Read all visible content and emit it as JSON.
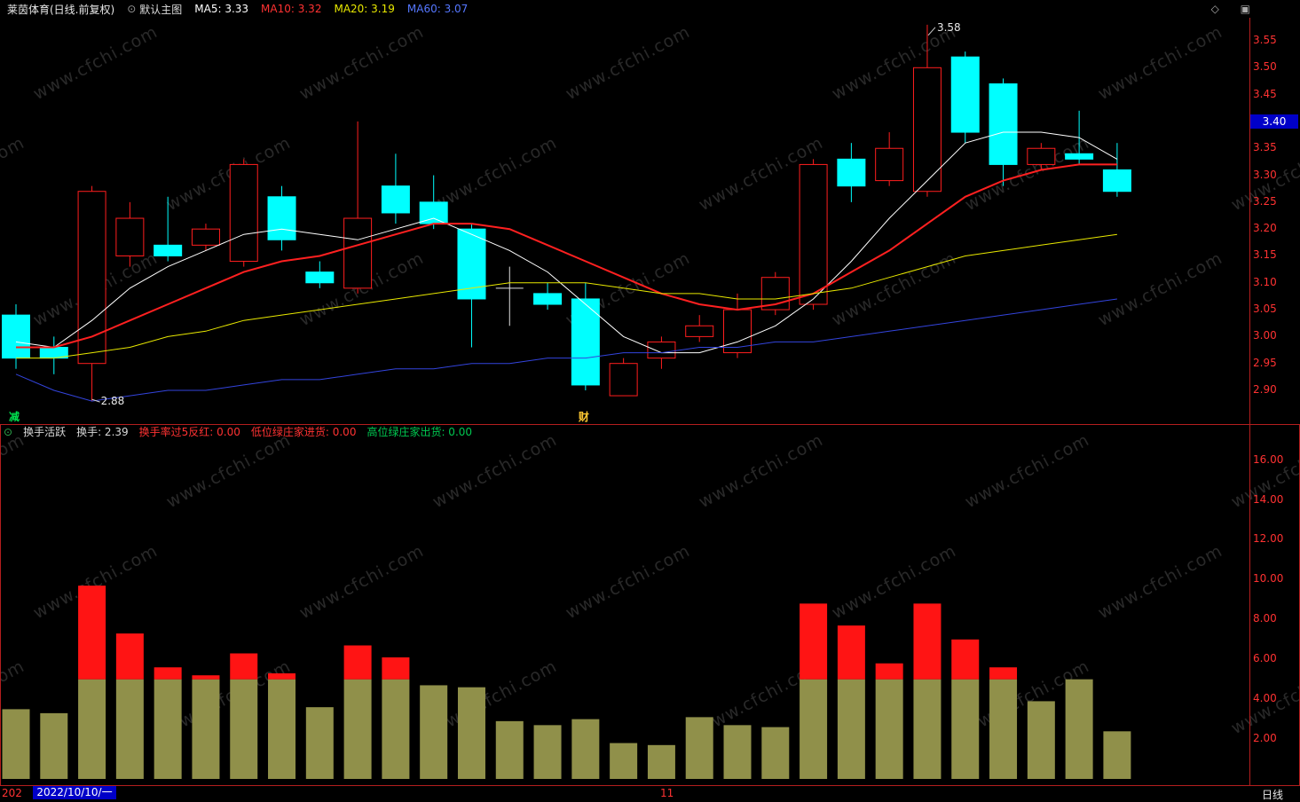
{
  "header": {
    "title": "莱茵体育(日线.前复权)",
    "overlay_label": "默认主图",
    "ma5": "MA5: 3.33",
    "ma10": "MA10: 3.32",
    "ma20": "MA20: 3.19",
    "ma60": "MA60: 3.07",
    "colors": {
      "ma5": "#ffffff",
      "ma10": "#ff3232",
      "ma20": "#e8e800",
      "ma60": "#5577ff"
    },
    "icons": {
      "overlay": "⊙",
      "diamond": "◇",
      "layout": "▣"
    }
  },
  "indicator_header": {
    "icon": "⊙",
    "name": "换手活跃",
    "turnover": "换手: 2.39",
    "signal_red": "换手率过5反红: 0.00",
    "signal_buy": "低位绿庄家进货: 0.00",
    "signal_sell": "高位绿庄家出货: 0.00",
    "colors": {
      "name": "#d8d8d8",
      "turnover": "#d8d8d8",
      "signal_red": "#ff3232",
      "signal_buy": "#ff3232",
      "signal_sell": "#00c850"
    }
  },
  "bottom_bar": {
    "clipped_date": "202",
    "selected_date": "2022/10/10/一",
    "highlight_bg": "#0000c8",
    "month_marker": "11",
    "period_label": "日线"
  },
  "watermark": "www.cfchi.com",
  "chart_data": [
    {
      "type": "candlestick",
      "title": "莱茵体育 日线 前复权",
      "y_ticks": [
        3.55,
        3.5,
        3.45,
        3.4,
        3.35,
        3.3,
        3.25,
        3.2,
        3.15,
        3.1,
        3.05,
        3.0,
        2.95,
        2.9
      ],
      "ylim": [
        2.87,
        3.6
      ],
      "price_marker": {
        "label": "3.40",
        "bg": "#0000c8",
        "fg": "#ffffff"
      },
      "high_annotation": {
        "label": "3.58",
        "index": 24
      },
      "low_annotation": {
        "label": "2.88",
        "index": 2
      },
      "event_markers": [
        {
          "label": "减",
          "index": 0,
          "color": "#00e650"
        },
        {
          "label": "财",
          "index": 15,
          "color": "#ffc832"
        }
      ],
      "colors": {
        "up": "#ff1e1e",
        "down": "#00ffff",
        "flat": "#e0e0e0",
        "axis_text": "#ff3232",
        "frame": "#b41e1e"
      },
      "candles": [
        {
          "o": 3.04,
          "h": 3.06,
          "l": 2.94,
          "c": 2.96
        },
        {
          "o": 2.98,
          "h": 3.0,
          "l": 2.93,
          "c": 2.96
        },
        {
          "o": 2.95,
          "h": 3.28,
          "l": 2.88,
          "c": 3.27
        },
        {
          "o": 3.15,
          "h": 3.25,
          "l": 3.13,
          "c": 3.22
        },
        {
          "o": 3.17,
          "h": 3.26,
          "l": 3.14,
          "c": 3.15
        },
        {
          "o": 3.17,
          "h": 3.21,
          "l": 3.16,
          "c": 3.2
        },
        {
          "o": 3.14,
          "h": 3.33,
          "l": 3.13,
          "c": 3.32
        },
        {
          "o": 3.26,
          "h": 3.28,
          "l": 3.16,
          "c": 3.18
        },
        {
          "o": 3.12,
          "h": 3.14,
          "l": 3.09,
          "c": 3.1
        },
        {
          "o": 3.09,
          "h": 3.4,
          "l": 3.08,
          "c": 3.22
        },
        {
          "o": 3.28,
          "h": 3.34,
          "l": 3.21,
          "c": 3.23
        },
        {
          "o": 3.25,
          "h": 3.3,
          "l": 3.2,
          "c": 3.21
        },
        {
          "o": 3.2,
          "h": 3.21,
          "l": 2.98,
          "c": 3.07
        },
        {
          "o": 3.09,
          "h": 3.13,
          "l": 3.02,
          "c": 3.09
        },
        {
          "o": 3.08,
          "h": 3.1,
          "l": 3.05,
          "c": 3.06
        },
        {
          "o": 3.07,
          "h": 3.1,
          "l": 2.9,
          "c": 2.91
        },
        {
          "o": 2.89,
          "h": 2.96,
          "l": 2.89,
          "c": 2.95
        },
        {
          "o": 2.96,
          "h": 3.0,
          "l": 2.94,
          "c": 2.99
        },
        {
          "o": 3.0,
          "h": 3.04,
          "l": 2.99,
          "c": 3.02
        },
        {
          "o": 2.97,
          "h": 3.08,
          "l": 2.96,
          "c": 3.05
        },
        {
          "o": 3.05,
          "h": 3.12,
          "l": 3.04,
          "c": 3.11
        },
        {
          "o": 3.06,
          "h": 3.33,
          "l": 3.05,
          "c": 3.32
        },
        {
          "o": 3.33,
          "h": 3.36,
          "l": 3.25,
          "c": 3.28
        },
        {
          "o": 3.29,
          "h": 3.38,
          "l": 3.28,
          "c": 3.35
        },
        {
          "o": 3.27,
          "h": 3.58,
          "l": 3.26,
          "c": 3.5
        },
        {
          "o": 3.52,
          "h": 3.53,
          "l": 3.36,
          "c": 3.38
        },
        {
          "o": 3.47,
          "h": 3.48,
          "l": 3.28,
          "c": 3.32
        },
        {
          "o": 3.32,
          "h": 3.36,
          "l": 3.31,
          "c": 3.35
        },
        {
          "o": 3.34,
          "h": 3.42,
          "l": 3.32,
          "c": 3.33
        },
        {
          "o": 3.31,
          "h": 3.36,
          "l": 3.26,
          "c": 3.27
        }
      ],
      "ma_lines": [
        {
          "name": "MA5",
          "color": "#ffffff",
          "width": 1,
          "values": [
            2.99,
            2.98,
            3.03,
            3.09,
            3.13,
            3.16,
            3.19,
            3.2,
            3.19,
            3.18,
            3.2,
            3.22,
            3.19,
            3.16,
            3.12,
            3.06,
            3.0,
            2.97,
            2.97,
            2.99,
            3.02,
            3.07,
            3.14,
            3.22,
            3.29,
            3.36,
            3.38,
            3.38,
            3.37,
            3.33
          ]
        },
        {
          "name": "MA10",
          "color": "#ff2020",
          "width": 2,
          "values": [
            2.98,
            2.98,
            3.0,
            3.03,
            3.06,
            3.09,
            3.12,
            3.14,
            3.15,
            3.17,
            3.19,
            3.21,
            3.21,
            3.2,
            3.17,
            3.14,
            3.11,
            3.08,
            3.06,
            3.05,
            3.06,
            3.08,
            3.12,
            3.16,
            3.21,
            3.26,
            3.29,
            3.31,
            3.32,
            3.32
          ]
        },
        {
          "name": "MA20",
          "color": "#e8e800",
          "width": 1,
          "values": [
            2.96,
            2.96,
            2.97,
            2.98,
            3.0,
            3.01,
            3.03,
            3.04,
            3.05,
            3.06,
            3.07,
            3.08,
            3.09,
            3.1,
            3.1,
            3.1,
            3.09,
            3.08,
            3.08,
            3.07,
            3.07,
            3.08,
            3.09,
            3.11,
            3.13,
            3.15,
            3.16,
            3.17,
            3.18,
            3.19
          ]
        },
        {
          "name": "MA60",
          "color": "#3344dd",
          "width": 1,
          "values": [
            2.93,
            2.9,
            2.88,
            2.89,
            2.9,
            2.9,
            2.91,
            2.92,
            2.92,
            2.93,
            2.94,
            2.94,
            2.95,
            2.95,
            2.96,
            2.96,
            2.97,
            2.97,
            2.98,
            2.98,
            2.99,
            2.99,
            3.0,
            3.01,
            3.02,
            3.03,
            3.04,
            3.05,
            3.06,
            3.07
          ]
        }
      ]
    },
    {
      "type": "bar",
      "name": "换手活跃",
      "y_ticks": [
        16.0,
        14.0,
        12.0,
        10.0,
        8.0,
        6.0,
        4.0,
        2.0
      ],
      "ylim": [
        0,
        17
      ],
      "threshold": 5.0,
      "color_below": "#90904a",
      "color_above": "#ff1414",
      "values": [
        3.5,
        3.3,
        9.7,
        7.3,
        5.6,
        5.2,
        6.3,
        5.3,
        3.6,
        6.7,
        6.1,
        4.7,
        4.6,
        2.9,
        2.7,
        3.0,
        1.8,
        1.7,
        3.1,
        2.7,
        2.6,
        8.8,
        7.7,
        5.8,
        8.8,
        7.0,
        5.6,
        3.9,
        5.0,
        2.39
      ]
    }
  ]
}
